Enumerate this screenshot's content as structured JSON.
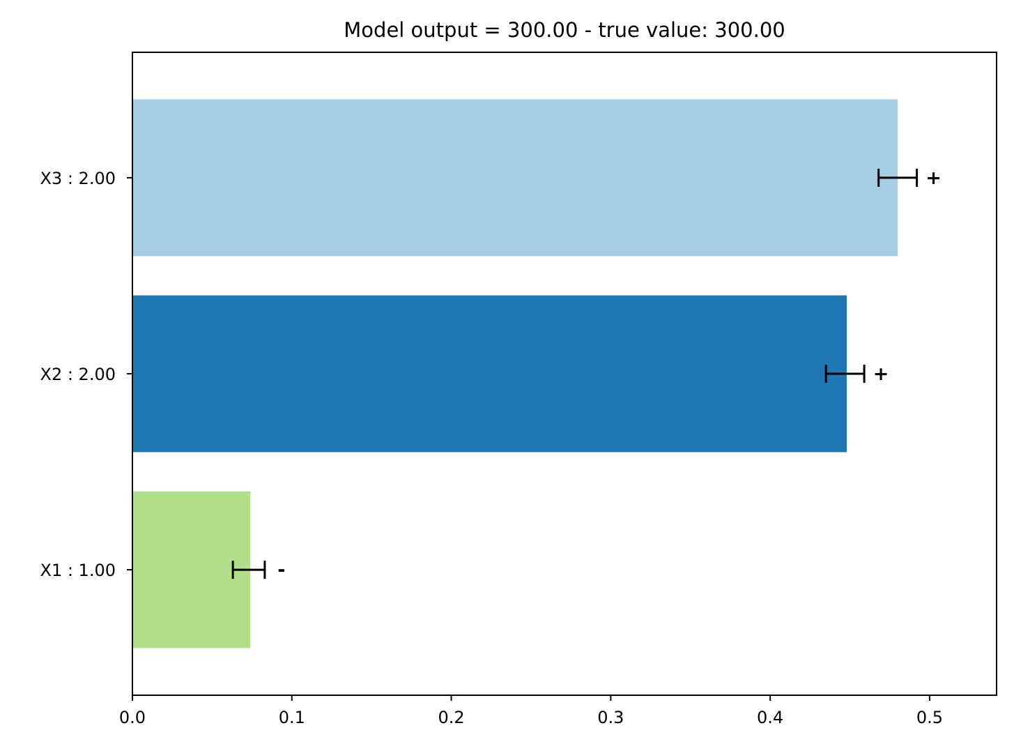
{
  "chart_data": {
    "type": "bar",
    "orientation": "horizontal",
    "title": "Model output = 300.00 - true value: 300.00",
    "xlabel": "",
    "ylabel": "",
    "xlim": [
      0.0,
      0.542
    ],
    "x_ticks": [
      0.0,
      0.1,
      0.2,
      0.3,
      0.4,
      0.5
    ],
    "x_tick_labels": [
      "0.0",
      "0.1",
      "0.2",
      "0.3",
      "0.4",
      "0.5"
    ],
    "grid": false,
    "categories": [
      "X1 : 1.00",
      "X2 : 2.00",
      "X3 : 2.00"
    ],
    "values": [
      0.074,
      0.448,
      0.48
    ],
    "error_low": [
      0.063,
      0.435,
      0.468
    ],
    "error_high": [
      0.083,
      0.459,
      0.492
    ],
    "signs": [
      "-",
      "+",
      "+"
    ],
    "colors": [
      "#b2df8a",
      "#1f78b4",
      "#a6cee3"
    ]
  }
}
